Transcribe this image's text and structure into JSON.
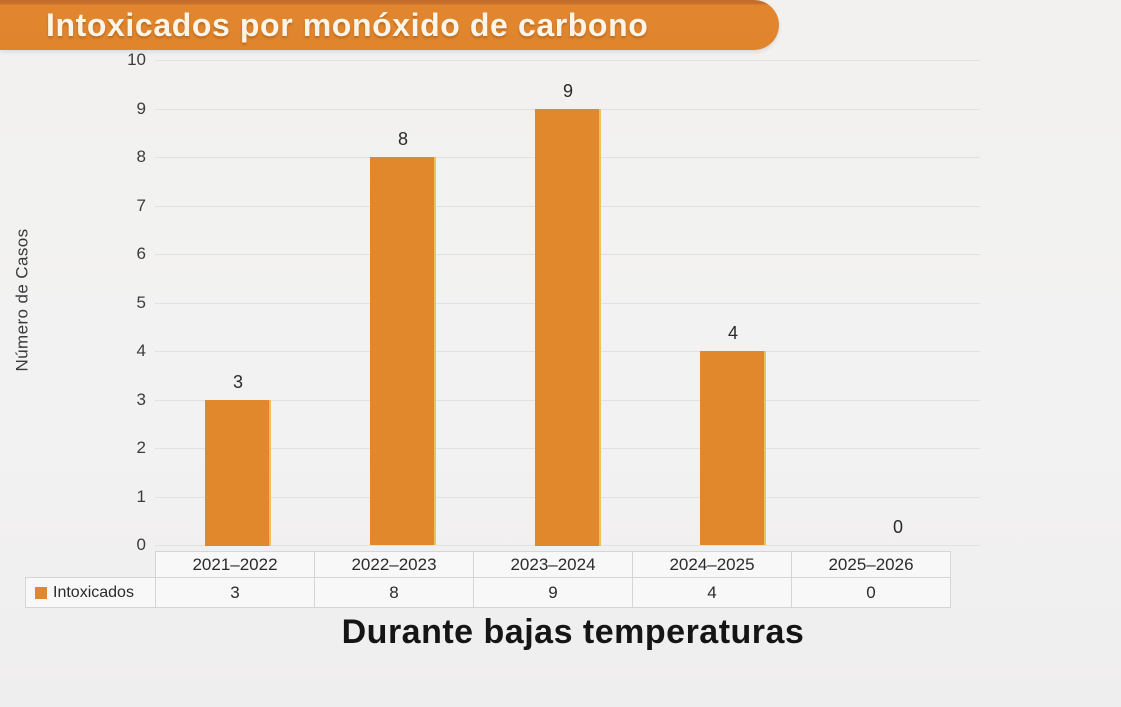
{
  "page": {
    "background": "#f2f1f1"
  },
  "header": {
    "title": "Intoxicados por monóxido de carbono",
    "banner_color": "#e0852c",
    "title_text_color": "#fbf4e8"
  },
  "chart_data": {
    "type": "bar",
    "title": "Intoxicados por monóxido de carbono",
    "categories": [
      "2021–2022",
      "2022–2023",
      "2023–2024",
      "2024–2025",
      "2025–2026"
    ],
    "series": [
      {
        "name": "Intoxicados",
        "values": [
          3,
          8,
          9,
          4,
          0
        ]
      }
    ],
    "ylabel": "Número de Casos",
    "xlabel": "Durante bajas temperaturas",
    "ylim": [
      0,
      10
    ],
    "ytick_step": 1,
    "grid": true,
    "bar_color": "#e1872c",
    "gridline_color": "#e1e1e2",
    "value_labels": [
      3,
      8,
      9,
      4,
      0
    ],
    "legend_position": "bottom-left"
  },
  "caption": {
    "text": "Durante bajas temperaturas"
  }
}
